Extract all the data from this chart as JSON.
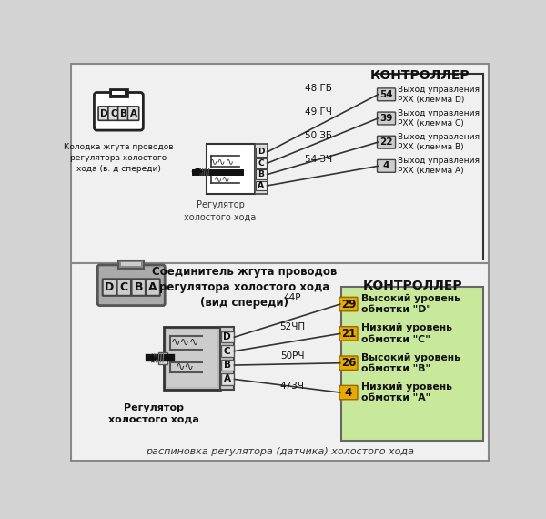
{
  "bg_color": "#d3d3d3",
  "title_text": "распиновка регулятора (датчика) холостого хода",
  "section1": {
    "header_text": "КОНТРОЛЛЕР",
    "connector_label": "Колодка жгута проводов\nрегулятора холостого\nхода (в. д спереди)",
    "regulator_label": "Регулятор\nхолостого хода",
    "pins": [
      {
        "letter": "D",
        "wire": "48 ГБ",
        "num": "54",
        "desc": "Выход управления\nРХХ (клемма D)"
      },
      {
        "letter": "C",
        "wire": "49 ГЧ",
        "num": "39",
        "desc": "Выход управления\nРХХ (клемма С)"
      },
      {
        "letter": "B",
        "wire": "50 ЗБ",
        "num": "22",
        "desc": "Выход управления\nРХХ (клемма В)"
      },
      {
        "letter": "A",
        "wire": "54 ЗЧ",
        "num": "4",
        "desc": "Выход управления\nРХХ (клемма А)"
      }
    ]
  },
  "section2": {
    "header_text": "КОНТРОЛЛЕР",
    "connector_label": "Соединитель жгута проводов\nрегулятора холостого хода\n(вид спереди)",
    "regulator_label": "Регулятор\nхолостого хода",
    "pins": [
      {
        "letter": "D",
        "wire": "44Р",
        "num": "29",
        "desc": "Высокий уровень\nобмотки \"D\""
      },
      {
        "letter": "C",
        "wire": "52ЧП",
        "num": "21",
        "desc": "Низкий уровень\nобмотки \"C\""
      },
      {
        "letter": "B",
        "wire": "50РЧ",
        "num": "26",
        "desc": "Высокий уровень\nобмотки \"B\""
      },
      {
        "letter": "A",
        "wire": "473Ч",
        "num": "4",
        "desc": "Низкий уровень\nобмотки \"A\""
      }
    ],
    "box_color": "#c8e89c",
    "box_border": "#888888"
  }
}
